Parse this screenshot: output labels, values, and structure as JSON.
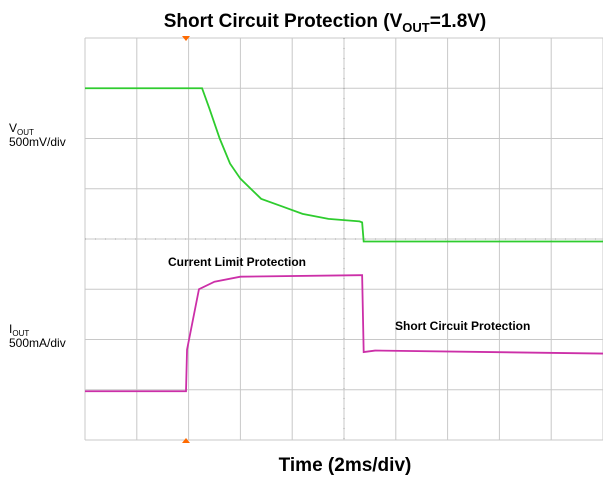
{
  "chart_data": {
    "type": "line",
    "title": {
      "text": "Short Circuit Protection (V",
      "sub": "OUT",
      "after": "=1.8V)"
    },
    "x_label": "Time (2ms/div)",
    "channels": [
      {
        "name": "V",
        "sub": "OUT",
        "scale": "500mV/div"
      },
      {
        "name": "I",
        "sub": "OUT",
        "scale": "500mA/div"
      }
    ],
    "annotations": [
      "Current Limit Protection",
      "Short Circuit Protection"
    ],
    "xlim": [
      0,
      10
    ],
    "ylim": [
      0,
      8
    ],
    "xticks": [
      0,
      1,
      2,
      3,
      4,
      5,
      6,
      7,
      8,
      9,
      10
    ],
    "yticks": [
      0,
      1,
      2,
      3,
      4,
      5,
      6,
      7,
      8
    ],
    "grid": true,
    "series": [
      {
        "color": "#2ecc2e",
        "x": [
          0,
          2.26,
          2.4,
          2.6,
          2.8,
          3.0,
          3.4,
          3.8,
          4.2,
          4.7,
          5.3,
          5.35,
          5.38,
          10
        ],
        "values": [
          7.0,
          7.0,
          6.6,
          6.0,
          5.5,
          5.2,
          4.8,
          4.65,
          4.5,
          4.4,
          4.35,
          4.33,
          3.95,
          3.95
        ]
      },
      {
        "color": "#cc2fa8",
        "x": [
          0,
          1.95,
          1.97,
          2.2,
          2.5,
          3.0,
          5.3,
          5.35,
          5.38,
          5.6,
          10
        ],
        "values": [
          0.97,
          0.97,
          1.8,
          3.0,
          3.15,
          3.25,
          3.28,
          3.28,
          1.75,
          1.78,
          1.72
        ]
      }
    ]
  }
}
